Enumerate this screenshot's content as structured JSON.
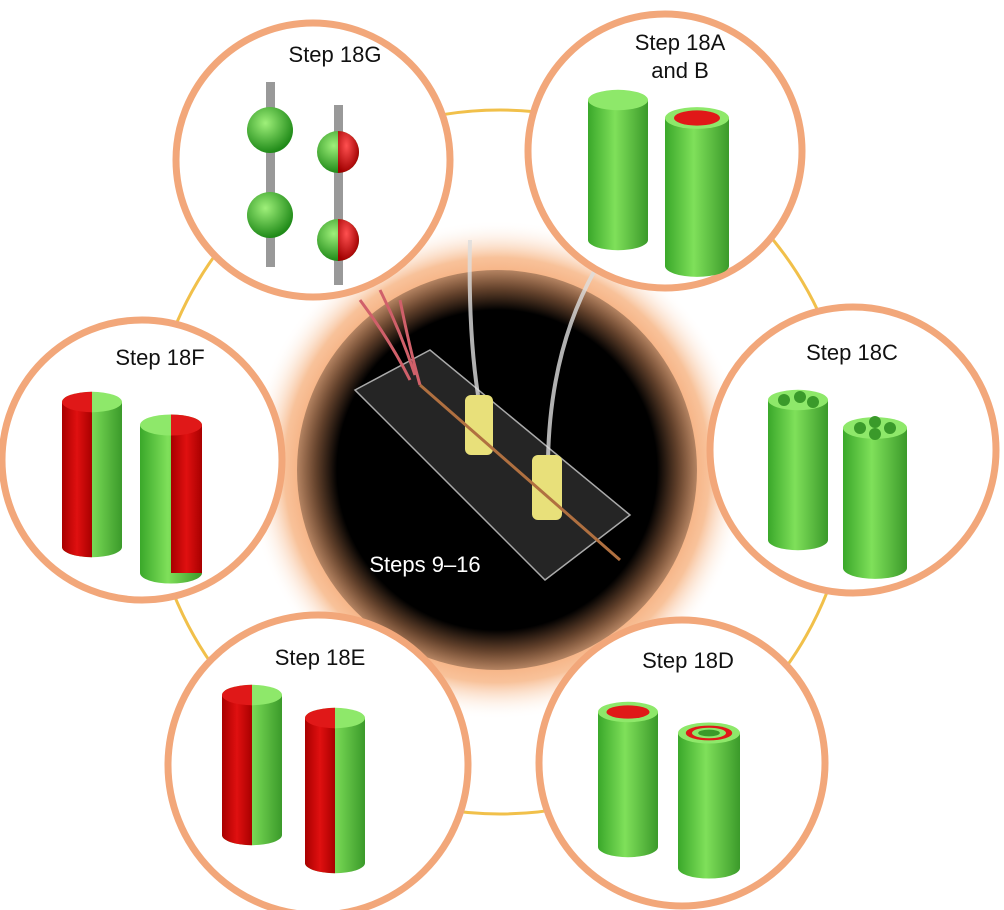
{
  "center": {
    "label": "Steps 9–16"
  },
  "nodes": [
    {
      "lines": [
        "Step 18G"
      ]
    },
    {
      "lines": [
        "Step 18A",
        "and B"
      ]
    },
    {
      "lines": [
        "Step 18C"
      ]
    },
    {
      "lines": [
        "Step 18D"
      ]
    },
    {
      "lines": [
        "Step 18E"
      ]
    },
    {
      "lines": [
        "Step 18F"
      ]
    }
  ]
}
